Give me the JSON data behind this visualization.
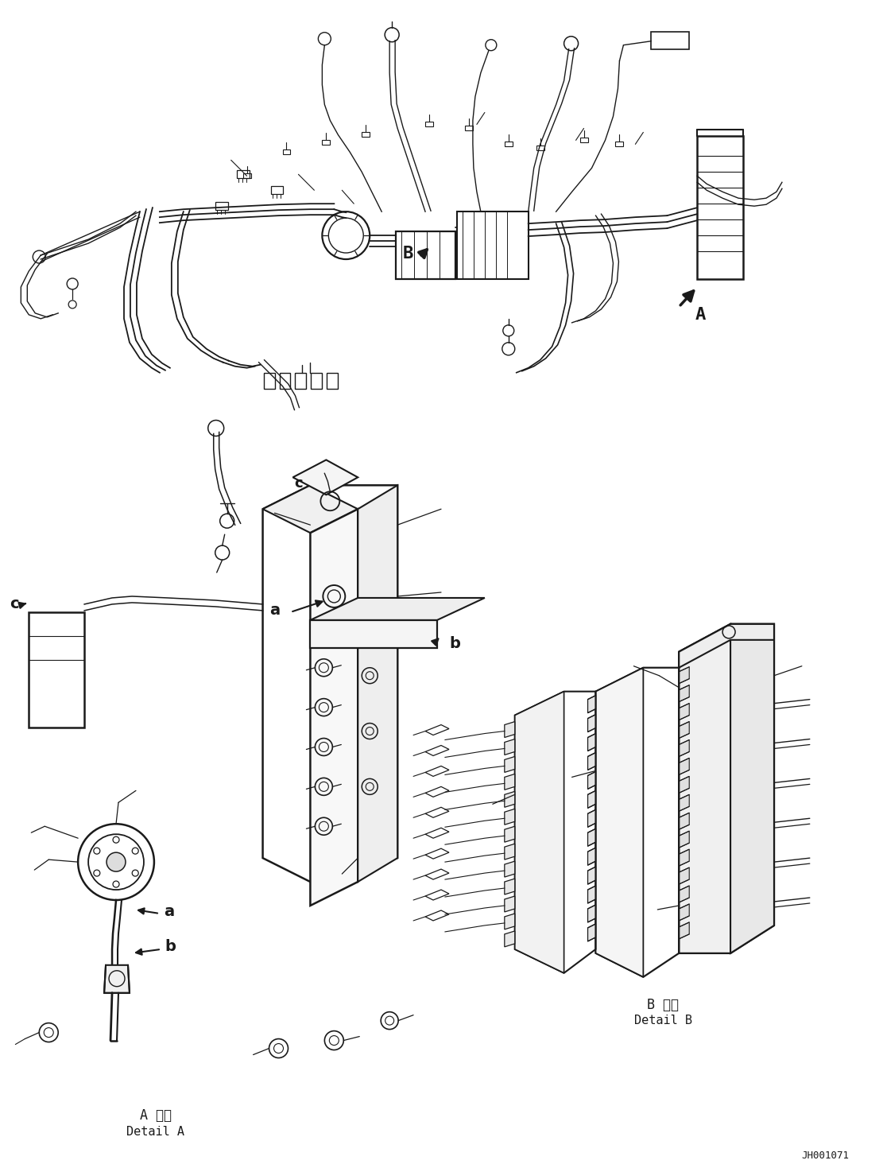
{
  "background_color": "#ffffff",
  "line_color": "#1a1a1a",
  "label_A_detail_ja": "A 詳細",
  "label_A_detail_en": "Detail A",
  "label_B_detail_ja": "B 詳細",
  "label_B_detail_en": "Detail B",
  "label_JH": "JH001071",
  "label_A": "A",
  "label_B": "B",
  "fig_width": 11.11,
  "fig_height": 14.69,
  "dpi": 100,
  "lc": "#1a1a1a"
}
